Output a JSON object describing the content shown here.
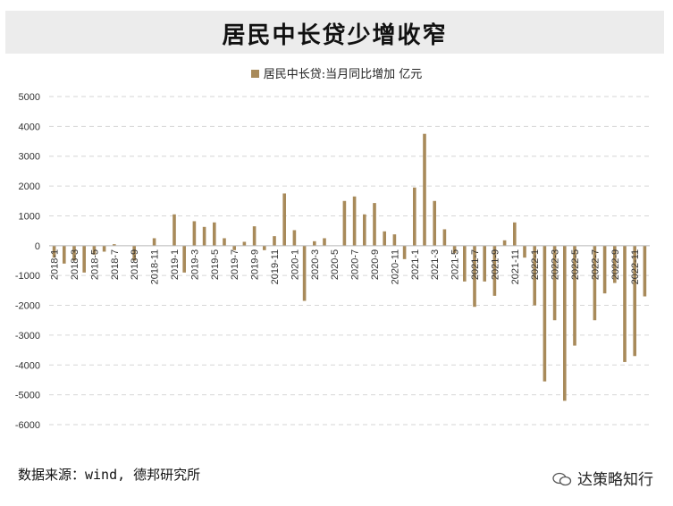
{
  "title": "居民中长贷少增收窄",
  "legend_label": "居民中长贷:当月同比增加  亿元",
  "source": "数据来源：wind, 德邦研究所",
  "watermark": "达策略知行",
  "colors": {
    "bar": "#a88a5a",
    "grid": "#d6d6d6",
    "title_band": "#ececec"
  },
  "chart_data": {
    "type": "bar",
    "title": "居民中长贷少增收窄",
    "legend": [
      "居民中长贷:当月同比增加  亿元"
    ],
    "xlabel": "",
    "ylabel": "",
    "ylim": [
      -6000,
      5000
    ],
    "yticks": [
      5000,
      4000,
      3000,
      2000,
      1000,
      0,
      -1000,
      -2000,
      -3000,
      -4000,
      -5000,
      -6000
    ],
    "grid": true,
    "legend_position": "top-center",
    "categories": [
      "2018-1",
      "2018-2",
      "2018-3",
      "2018-4",
      "2018-5",
      "2018-6",
      "2018-7",
      "2018-8",
      "2018-9",
      "2018-10",
      "2018-11",
      "2018-12",
      "2019-1",
      "2019-2",
      "2019-3",
      "2019-4",
      "2019-5",
      "2019-6",
      "2019-7",
      "2019-8",
      "2019-9",
      "2019-10",
      "2019-11",
      "2019-12",
      "2020-1",
      "2020-2",
      "2020-3",
      "2020-4",
      "2020-5",
      "2020-6",
      "2020-7",
      "2020-8",
      "2020-9",
      "2020-10",
      "2020-11",
      "2020-12",
      "2021-1",
      "2021-2",
      "2021-3",
      "2021-4",
      "2021-5",
      "2021-6",
      "2021-7",
      "2021-8",
      "2021-9",
      "2021-10",
      "2021-11",
      "2021-12",
      "2022-1",
      "2022-2",
      "2022-3",
      "2022-4",
      "2022-5",
      "2022-6",
      "2022-7",
      "2022-8",
      "2022-9",
      "2022-10",
      "2022-11",
      "2022-12"
    ],
    "tick_labels": [
      "2018-1",
      "2018-3",
      "2018-5",
      "2018-7",
      "2018-9",
      "2018-11",
      "2019-1",
      "2019-3",
      "2019-5",
      "2019-7",
      "2019-9",
      "2019-11",
      "2020-1",
      "2020-3",
      "2020-5",
      "2020-7",
      "2020-9",
      "2020-11",
      "2021-1",
      "2021-3",
      "2021-5",
      "2021-7",
      "2021-9",
      "2021-11",
      "2022-1",
      "2022-3",
      "2022-5",
      "2022-7",
      "2022-9",
      "2022-11"
    ],
    "series": [
      {
        "name": "居民中长贷:当月同比增加  亿元",
        "values": [
          -400,
          -600,
          -500,
          -900,
          -300,
          -200,
          50,
          0,
          -500,
          0,
          250,
          0,
          1050,
          -900,
          820,
          630,
          780,
          250,
          -150,
          130,
          650,
          -150,
          320,
          1750,
          520,
          -1850,
          150,
          250,
          0,
          1500,
          1650,
          1050,
          1430,
          480,
          380,
          -450,
          1950,
          3750,
          1500,
          550,
          -250,
          -1200,
          -2050,
          -1200,
          -1680,
          180,
          780,
          -400,
          -2000,
          -4550,
          -2500,
          -5200,
          -3350,
          0,
          -2500,
          -1600,
          -1250,
          -3900,
          -3700,
          -1700
        ]
      }
    ]
  }
}
